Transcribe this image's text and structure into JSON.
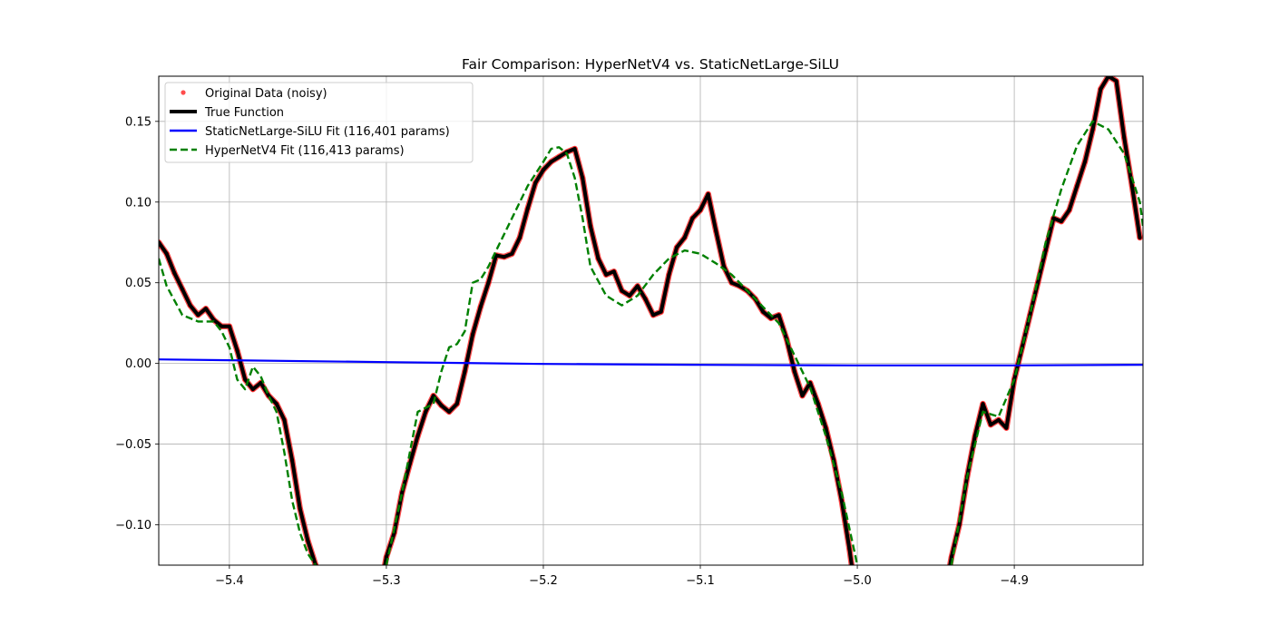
{
  "chart_data": {
    "type": "line",
    "title": "Fair Comparison: HyperNetV4 vs. StaticNetLarge-SiLU",
    "xlabel": "",
    "ylabel": "",
    "xlim": [
      -5.445,
      -4.818
    ],
    "ylim": [
      -0.125,
      0.178
    ],
    "grid": true,
    "legend_position": "top-left",
    "x_ticks": [
      -5.4,
      -5.3,
      -5.2,
      -5.1,
      -5.0,
      -4.9
    ],
    "x_tick_labels": [
      "−5.4",
      "−5.3",
      "−5.2",
      "−5.1",
      "−5.0",
      "−4.9"
    ],
    "y_ticks": [
      -0.1,
      -0.05,
      0.0,
      0.05,
      0.1,
      0.15
    ],
    "y_tick_labels": [
      "−0.10",
      "−0.05",
      "0.00",
      "0.05",
      "0.10",
      "0.15"
    ],
    "series": [
      {
        "name": "Original Data (noisy)",
        "kind": "scatter",
        "color": "#ff0000",
        "x": [
          -5.445,
          -5.44,
          -5.435,
          -5.43,
          -5.425,
          -5.42,
          -5.415,
          -5.41,
          -5.405,
          -5.4,
          -5.395,
          -5.39,
          -5.385,
          -5.38,
          -5.375,
          -5.37,
          -5.365,
          -5.36,
          -5.355,
          -5.35,
          -5.345,
          -5.3,
          -5.295,
          -5.29,
          -5.285,
          -5.28,
          -5.275,
          -5.27,
          -5.265,
          -5.26,
          -5.255,
          -5.25,
          -5.245,
          -5.24,
          -5.235,
          -5.23,
          -5.225,
          -5.22,
          -5.215,
          -5.21,
          -5.205,
          -5.2,
          -5.195,
          -5.19,
          -5.185,
          -5.18,
          -5.175,
          -5.17,
          -5.165,
          -5.16,
          -5.155,
          -5.15,
          -5.145,
          -5.14,
          -5.135,
          -5.13,
          -5.125,
          -5.12,
          -5.115,
          -5.11,
          -5.105,
          -5.1,
          -5.095,
          -5.09,
          -5.085,
          -5.08,
          -5.075,
          -5.07,
          -5.065,
          -5.06,
          -5.055,
          -5.05,
          -5.045,
          -5.04,
          -5.035,
          -5.03,
          -5.025,
          -5.02,
          -5.015,
          -5.01,
          -5.005,
          -4.94,
          -4.935,
          -4.93,
          -4.925,
          -4.92,
          -4.915,
          -4.91,
          -4.905,
          -4.9,
          -4.895,
          -4.89,
          -4.885,
          -4.88,
          -4.875,
          -4.87,
          -4.865,
          -4.86,
          -4.855,
          -4.85,
          -4.845,
          -4.84,
          -4.835,
          -4.83,
          -4.825,
          -4.82
        ],
        "y": [
          0.075,
          0.068,
          0.056,
          0.046,
          0.036,
          0.03,
          0.034,
          0.027,
          0.023,
          0.023,
          0.008,
          -0.01,
          -0.016,
          -0.012,
          -0.02,
          -0.025,
          -0.035,
          -0.06,
          -0.09,
          -0.11,
          -0.125,
          -0.12,
          -0.105,
          -0.08,
          -0.062,
          -0.045,
          -0.03,
          -0.02,
          -0.026,
          -0.03,
          -0.025,
          -0.005,
          0.018,
          0.035,
          0.05,
          0.067,
          0.066,
          0.068,
          0.078,
          0.096,
          0.112,
          0.12,
          0.125,
          0.128,
          0.131,
          0.133,
          0.115,
          0.085,
          0.065,
          0.055,
          0.057,
          0.045,
          0.042,
          0.048,
          0.04,
          0.03,
          0.032,
          0.055,
          0.072,
          0.078,
          0.09,
          0.095,
          0.105,
          0.082,
          0.06,
          0.05,
          0.048,
          0.045,
          0.04,
          0.032,
          0.028,
          0.03,
          0.015,
          -0.005,
          -0.02,
          -0.012,
          -0.025,
          -0.04,
          -0.06,
          -0.085,
          -0.115,
          -0.12,
          -0.1,
          -0.07,
          -0.045,
          -0.025,
          -0.038,
          -0.035,
          -0.04,
          -0.01,
          0.01,
          0.03,
          0.05,
          0.07,
          0.09,
          0.088,
          0.095,
          0.11,
          0.125,
          0.145,
          0.17,
          0.178,
          0.175,
          0.14,
          0.11,
          0.078
        ],
        "y_clipped_below": true
      },
      {
        "name": "True Function",
        "kind": "line",
        "color": "#000000",
        "x": [
          -5.445,
          -5.44,
          -5.435,
          -5.43,
          -5.425,
          -5.42,
          -5.415,
          -5.41,
          -5.405,
          -5.4,
          -5.395,
          -5.39,
          -5.385,
          -5.38,
          -5.375,
          -5.37,
          -5.365,
          -5.36,
          -5.355,
          -5.35,
          -5.345,
          -5.3,
          -5.295,
          -5.29,
          -5.285,
          -5.28,
          -5.275,
          -5.27,
          -5.265,
          -5.26,
          -5.255,
          -5.25,
          -5.245,
          -5.24,
          -5.235,
          -5.23,
          -5.225,
          -5.22,
          -5.215,
          -5.21,
          -5.205,
          -5.2,
          -5.195,
          -5.19,
          -5.185,
          -5.18,
          -5.175,
          -5.17,
          -5.165,
          -5.16,
          -5.155,
          -5.15,
          -5.145,
          -5.14,
          -5.135,
          -5.13,
          -5.125,
          -5.12,
          -5.115,
          -5.11,
          -5.105,
          -5.1,
          -5.095,
          -5.09,
          -5.085,
          -5.08,
          -5.075,
          -5.07,
          -5.065,
          -5.06,
          -5.055,
          -5.05,
          -5.045,
          -5.04,
          -5.035,
          -5.03,
          -5.025,
          -5.02,
          -5.015,
          -5.01,
          -5.005,
          -4.94,
          -4.935,
          -4.93,
          -4.925,
          -4.92,
          -4.915,
          -4.91,
          -4.905,
          -4.9,
          -4.895,
          -4.89,
          -4.885,
          -4.88,
          -4.875,
          -4.87,
          -4.865,
          -4.86,
          -4.855,
          -4.85,
          -4.845,
          -4.84,
          -4.835,
          -4.83,
          -4.825,
          -4.82
        ],
        "y": [
          0.075,
          0.068,
          0.056,
          0.046,
          0.036,
          0.03,
          0.034,
          0.027,
          0.023,
          0.023,
          0.008,
          -0.01,
          -0.016,
          -0.012,
          -0.02,
          -0.025,
          -0.035,
          -0.06,
          -0.09,
          -0.11,
          -0.125,
          -0.12,
          -0.105,
          -0.08,
          -0.062,
          -0.045,
          -0.03,
          -0.02,
          -0.026,
          -0.03,
          -0.025,
          -0.005,
          0.018,
          0.035,
          0.05,
          0.067,
          0.066,
          0.068,
          0.078,
          0.096,
          0.112,
          0.12,
          0.125,
          0.128,
          0.131,
          0.133,
          0.115,
          0.085,
          0.065,
          0.055,
          0.057,
          0.045,
          0.042,
          0.048,
          0.04,
          0.03,
          0.032,
          0.055,
          0.072,
          0.078,
          0.09,
          0.095,
          0.105,
          0.082,
          0.06,
          0.05,
          0.048,
          0.045,
          0.04,
          0.032,
          0.028,
          0.03,
          0.015,
          -0.005,
          -0.02,
          -0.012,
          -0.025,
          -0.04,
          -0.06,
          -0.085,
          -0.115,
          -0.12,
          -0.1,
          -0.07,
          -0.045,
          -0.025,
          -0.038,
          -0.035,
          -0.04,
          -0.01,
          0.01,
          0.03,
          0.05,
          0.07,
          0.09,
          0.088,
          0.095,
          0.11,
          0.125,
          0.145,
          0.17,
          0.178,
          0.175,
          0.14,
          0.11,
          0.078
        ],
        "y_clipped_below": true
      },
      {
        "name": "StaticNetLarge-SiLU Fit (116,401 params)",
        "kind": "line",
        "color": "#0000ff",
        "x": [
          -5.445,
          -5.4,
          -5.3,
          -5.2,
          -5.1,
          -5.0,
          -4.9,
          -4.818
        ],
        "y": [
          0.0025,
          0.002,
          0.0008,
          -0.0003,
          -0.0009,
          -0.0012,
          -0.0012,
          -0.0008
        ]
      },
      {
        "name": "HyperNetV4 Fit (116,413 params)",
        "kind": "dashed-line",
        "color": "#008000",
        "x": [
          -5.445,
          -5.44,
          -5.43,
          -5.42,
          -5.41,
          -5.405,
          -5.4,
          -5.395,
          -5.39,
          -5.385,
          -5.38,
          -5.375,
          -5.37,
          -5.365,
          -5.36,
          -5.355,
          -5.35,
          -5.345,
          -5.3,
          -5.29,
          -5.28,
          -5.27,
          -5.265,
          -5.26,
          -5.255,
          -5.25,
          -5.245,
          -5.24,
          -5.235,
          -5.23,
          -5.22,
          -5.21,
          -5.2,
          -5.195,
          -5.19,
          -5.185,
          -5.18,
          -5.175,
          -5.17,
          -5.16,
          -5.15,
          -5.14,
          -5.13,
          -5.12,
          -5.11,
          -5.1,
          -5.09,
          -5.08,
          -5.07,
          -5.06,
          -5.05,
          -5.04,
          -5.03,
          -5.02,
          -5.01,
          -5.0,
          -4.94,
          -4.93,
          -4.92,
          -4.91,
          -4.9,
          -4.89,
          -4.88,
          -4.87,
          -4.86,
          -4.85,
          -4.84,
          -4.83,
          -4.82,
          -4.818
        ],
        "y": [
          0.065,
          0.048,
          0.03,
          0.026,
          0.026,
          0.02,
          0.01,
          -0.01,
          -0.016,
          -0.002,
          -0.008,
          -0.02,
          -0.03,
          -0.055,
          -0.085,
          -0.105,
          -0.118,
          -0.125,
          -0.125,
          -0.08,
          -0.03,
          -0.025,
          -0.005,
          0.01,
          0.012,
          0.02,
          0.05,
          0.052,
          0.06,
          0.07,
          0.09,
          0.11,
          0.125,
          0.133,
          0.134,
          0.13,
          0.115,
          0.09,
          0.06,
          0.042,
          0.036,
          0.042,
          0.055,
          0.065,
          0.07,
          0.068,
          0.062,
          0.055,
          0.045,
          0.035,
          0.025,
          0.005,
          -0.015,
          -0.045,
          -0.08,
          -0.125,
          -0.125,
          -0.07,
          -0.03,
          -0.033,
          -0.01,
          0.03,
          0.075,
          0.108,
          0.135,
          0.15,
          0.145,
          0.13,
          0.1,
          0.085
        ]
      }
    ]
  }
}
